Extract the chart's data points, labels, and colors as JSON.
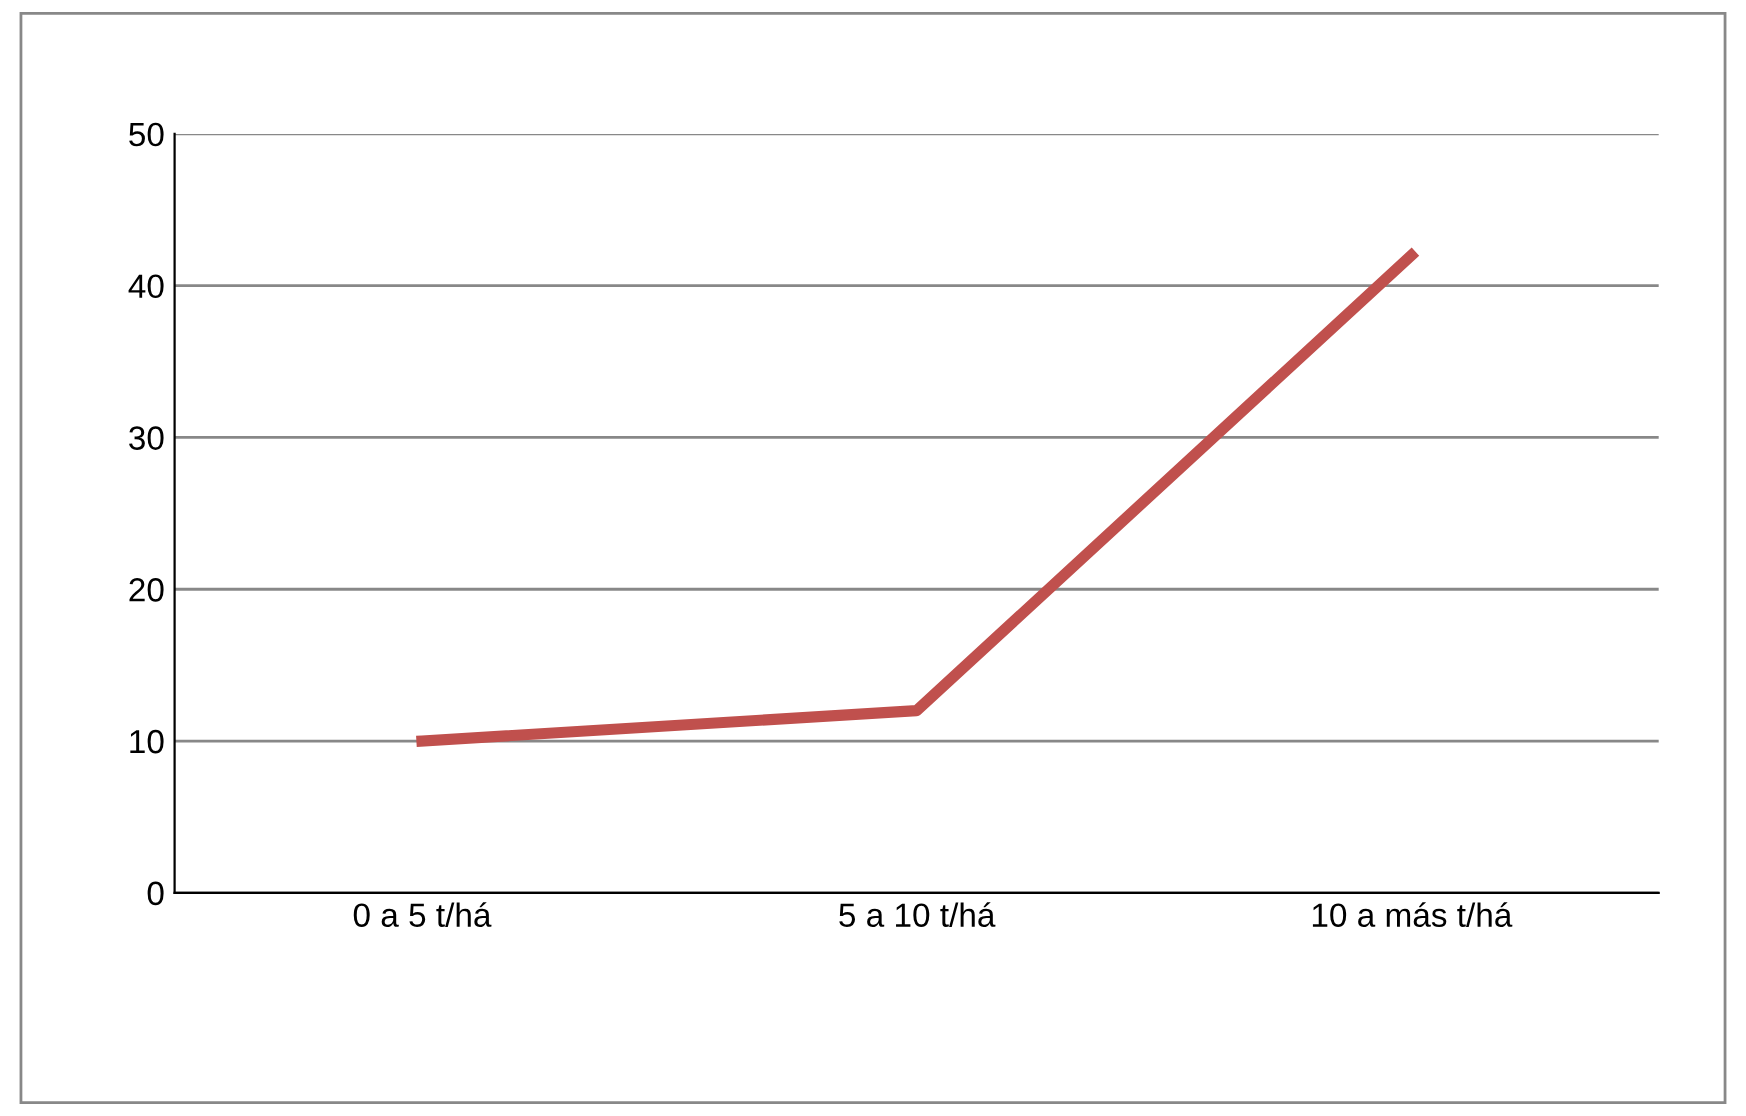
{
  "chart_data": {
    "type": "line",
    "categories": [
      "0 a 5 t/há",
      "5 a 10 t/há",
      "10 a más t/há"
    ],
    "series": [
      {
        "color": "#c0504d",
        "values": [
          10,
          12,
          42
        ]
      }
    ],
    "ylim": [
      0,
      50
    ],
    "yticks": [
      0,
      10,
      20,
      30,
      40,
      50
    ],
    "grid": "y",
    "marker": "none",
    "line_style": "solid"
  }
}
